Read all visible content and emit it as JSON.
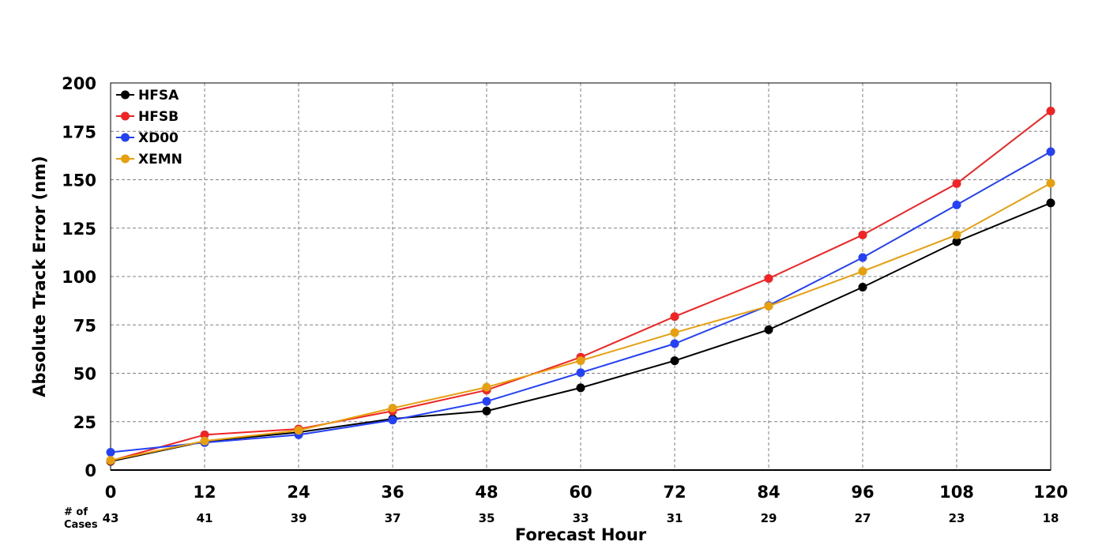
{
  "chart_data": {
    "type": "line",
    "x": [
      0,
      12,
      24,
      36,
      48,
      60,
      72,
      84,
      96,
      108,
      120
    ],
    "series": [
      {
        "name": "HFSA",
        "color": "#000000",
        "values": [
          4.5,
          14.8,
          19.5,
          26.5,
          30.5,
          42.5,
          56.5,
          72.5,
          94.5,
          118,
          138
        ]
      },
      {
        "name": "HFSB",
        "color": "#f02424",
        "values": [
          4.8,
          18.2,
          21.2,
          30.5,
          41.3,
          58.3,
          79.3,
          99,
          121.5,
          148,
          185.5
        ]
      },
      {
        "name": "XD00",
        "color": "#2441f5",
        "values": [
          9.2,
          14.2,
          18.2,
          25.8,
          35.5,
          50.3,
          65.3,
          85,
          109.8,
          137,
          164.5
        ]
      },
      {
        "name": "XEMN",
        "color": "#e69f0e",
        "values": [
          5.0,
          15.0,
          20.5,
          32.0,
          42.8,
          56.5,
          71.0,
          84.7,
          102.7,
          121.5,
          148.2
        ]
      }
    ],
    "xlabel": "Forecast Hour",
    "ylabel": "Absolute Track Error (nm)",
    "xticks": [
      "0",
      "12",
      "24",
      "36",
      "48",
      "60",
      "72",
      "84",
      "96",
      "108",
      "120"
    ],
    "yticks": [
      "0",
      "25",
      "50",
      "75",
      "100",
      "125",
      "150",
      "175",
      "200"
    ],
    "xlim": [
      0,
      120
    ],
    "ylim": [
      0,
      200
    ],
    "grid": true,
    "legend_position": "top-left",
    "cases": {
      "title_line1": "# of",
      "title_line2": "Cases",
      "values": [
        "43",
        "41",
        "39",
        "37",
        "35",
        "33",
        "31",
        "29",
        "27",
        "23",
        "18"
      ]
    }
  }
}
